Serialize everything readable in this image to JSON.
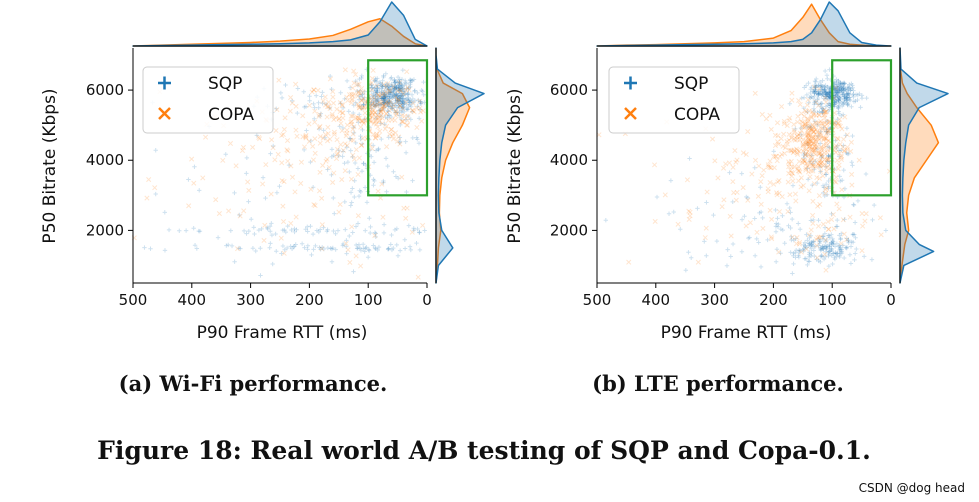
{
  "figure": {
    "caption": "Figure 18: Real world A/B testing of SQP and Copa-0.1.",
    "watermark": "CSDN @dog head"
  },
  "colors": {
    "sqp": "#1f77b4",
    "copa": "#ff7f0e",
    "box": "#2ca02c"
  },
  "chart_data": [
    {
      "type": "scatter",
      "subcaption": "(a) Wi-Fi performance.",
      "xlabel": "P90 Frame RTT (ms)",
      "ylabel": "P50 Bitrate (Kbps)",
      "xlim": [
        500,
        0
      ],
      "ylim": [
        500,
        7200
      ],
      "xticks": [
        500,
        400,
        300,
        200,
        100,
        0
      ],
      "yticks": [
        2000,
        4000,
        6000
      ],
      "legend": {
        "position": "top-left",
        "entries": [
          {
            "name": "SQP",
            "marker": "+"
          },
          {
            "name": "COPA",
            "marker": "x"
          }
        ]
      },
      "highlight_box": {
        "x": [
          100,
          0
        ],
        "y": [
          3000,
          6850
        ]
      },
      "series": [
        {
          "name": "SQP",
          "clusters": [
            {
              "cx": 60,
              "cy": 5850,
              "sx": 22,
              "sy": 280,
              "n": 360
            },
            {
              "cx": 95,
              "cy": 4600,
              "sx": 45,
              "sy": 1100,
              "n": 120
            },
            {
              "cx": 110,
              "cy": 1500,
              "sx": 120,
              "sy": 70,
              "n": 90
            },
            {
              "cx": 160,
              "cy": 2000,
              "sx": 140,
              "sy": 60,
              "n": 70
            },
            {
              "cx": 250,
              "cy": 3000,
              "sx": 150,
              "sy": 1500,
              "n": 70
            },
            {
              "cx": 130,
              "cy": 5800,
              "sx": 80,
              "sy": 300,
              "n": 60
            }
          ]
        },
        {
          "name": "COPA",
          "clusters": [
            {
              "cx": 90,
              "cy": 5400,
              "sx": 40,
              "sy": 450,
              "n": 220
            },
            {
              "cx": 170,
              "cy": 4800,
              "sx": 80,
              "sy": 700,
              "n": 120
            },
            {
              "cx": 270,
              "cy": 3500,
              "sx": 130,
              "sy": 1300,
              "n": 60
            },
            {
              "cx": 100,
              "cy": 2000,
              "sx": 110,
              "sy": 600,
              "n": 40
            }
          ]
        }
      ],
      "marginal_x": {
        "grid": [
          500,
          450,
          400,
          350,
          300,
          250,
          200,
          160,
          130,
          100,
          80,
          60,
          40,
          20,
          0
        ],
        "sqp": [
          0.0,
          0.01,
          0.02,
          0.03,
          0.04,
          0.05,
          0.07,
          0.1,
          0.14,
          0.25,
          0.55,
          1.0,
          0.7,
          0.15,
          0.0
        ],
        "copa": [
          0.0,
          0.02,
          0.04,
          0.06,
          0.08,
          0.11,
          0.16,
          0.24,
          0.38,
          0.55,
          0.62,
          0.45,
          0.22,
          0.05,
          0.0
        ]
      },
      "marginal_y": {
        "grid": [
          500,
          1000,
          1500,
          2000,
          2500,
          3000,
          3500,
          4000,
          4500,
          5000,
          5500,
          5900,
          6200,
          6600,
          7000,
          7200
        ],
        "sqp": [
          0.0,
          0.05,
          0.35,
          0.12,
          0.06,
          0.05,
          0.06,
          0.08,
          0.12,
          0.2,
          0.45,
          1.0,
          0.4,
          0.03,
          0.0,
          0.0
        ],
        "copa": [
          0.0,
          0.03,
          0.05,
          0.1,
          0.07,
          0.08,
          0.12,
          0.2,
          0.35,
          0.55,
          0.7,
          0.55,
          0.15,
          0.02,
          0.0,
          0.0
        ]
      }
    },
    {
      "type": "scatter",
      "subcaption": "(b) LTE performance.",
      "xlabel": "P90 Frame RTT (ms)",
      "ylabel": "P50 Bitrate (Kbps)",
      "xlim": [
        500,
        0
      ],
      "ylim": [
        500,
        7200
      ],
      "xticks": [
        500,
        400,
        300,
        200,
        100,
        0
      ],
      "yticks": [
        2000,
        4000,
        6000
      ],
      "legend": {
        "position": "top-left",
        "entries": [
          {
            "name": "SQP",
            "marker": "+"
          },
          {
            "name": "COPA",
            "marker": "x"
          }
        ]
      },
      "highlight_box": {
        "x": [
          100,
          0
        ],
        "y": [
          3000,
          6850
        ]
      },
      "series": [
        {
          "name": "SQP",
          "clusters": [
            {
              "cx": 95,
              "cy": 5900,
              "sx": 20,
              "sy": 200,
              "n": 320
            },
            {
              "cx": 110,
              "cy": 4300,
              "sx": 25,
              "sy": 900,
              "n": 120
            },
            {
              "cx": 115,
              "cy": 1500,
              "sx": 30,
              "sy": 250,
              "n": 150
            },
            {
              "cx": 160,
              "cy": 2000,
              "sx": 80,
              "sy": 500,
              "n": 60
            },
            {
              "cx": 300,
              "cy": 2500,
              "sx": 120,
              "sy": 1200,
              "n": 40
            }
          ]
        },
        {
          "name": "COPA",
          "clusters": [
            {
              "cx": 130,
              "cy": 4500,
              "sx": 28,
              "sy": 550,
              "n": 330
            },
            {
              "cx": 170,
              "cy": 3500,
              "sx": 60,
              "sy": 800,
              "n": 80
            },
            {
              "cx": 300,
              "cy": 2800,
              "sx": 120,
              "sy": 1400,
              "n": 50
            },
            {
              "cx": 110,
              "cy": 2000,
              "sx": 50,
              "sy": 400,
              "n": 40
            }
          ]
        }
      ],
      "marginal_x": {
        "grid": [
          500,
          450,
          400,
          350,
          300,
          250,
          200,
          170,
          150,
          135,
          120,
          105,
          90,
          70,
          50,
          25,
          0
        ],
        "sqp": [
          0.0,
          0.01,
          0.02,
          0.03,
          0.04,
          0.05,
          0.07,
          0.1,
          0.15,
          0.3,
          0.6,
          1.0,
          0.8,
          0.3,
          0.08,
          0.02,
          0.0
        ],
        "copa": [
          0.0,
          0.02,
          0.03,
          0.05,
          0.07,
          0.1,
          0.18,
          0.35,
          0.65,
          0.95,
          0.6,
          0.3,
          0.1,
          0.04,
          0.02,
          0.0,
          0.0
        ]
      },
      "marginal_y": {
        "grid": [
          500,
          1000,
          1400,
          1600,
          2000,
          2500,
          3000,
          3500,
          4000,
          4500,
          5000,
          5500,
          5900,
          6200,
          6600,
          7200
        ],
        "sqp": [
          0.0,
          0.08,
          0.7,
          0.4,
          0.12,
          0.06,
          0.05,
          0.06,
          0.08,
          0.12,
          0.18,
          0.4,
          1.0,
          0.35,
          0.02,
          0.0
        ],
        "copa": [
          0.0,
          0.04,
          0.08,
          0.1,
          0.18,
          0.14,
          0.18,
          0.3,
          0.55,
          0.8,
          0.65,
          0.35,
          0.15,
          0.05,
          0.01,
          0.0
        ]
      }
    }
  ]
}
